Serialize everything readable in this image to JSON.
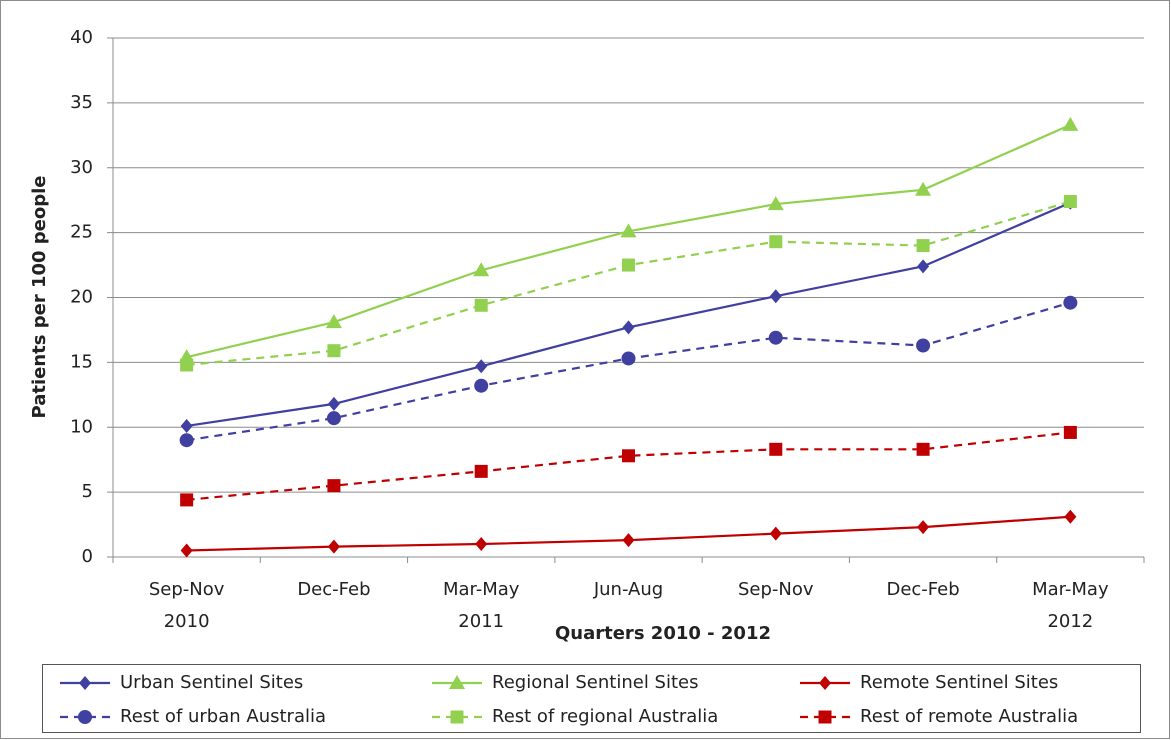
{
  "chart_data": {
    "type": "line",
    "x_label": "Quarters 2010 - 2012",
    "y_label": "Patients per 100 people",
    "categories": [
      "Sep-Nov\n2010",
      "Dec-Feb",
      "Mar-May\n2011",
      "Jun-Aug",
      "Sep-Nov",
      "Dec-Feb",
      "Mar-May\n2012"
    ],
    "ylim": [
      0,
      40
    ],
    "yticks": [
      0,
      5,
      10,
      15,
      20,
      25,
      30,
      35,
      40
    ],
    "grid": true,
    "legend": "bottom",
    "series": [
      {
        "name": "Urban Sentinel Sites",
        "color": "#4040a0",
        "marker": "diamond",
        "dash": false,
        "values": [
          10.1,
          11.8,
          14.7,
          17.7,
          20.1,
          22.4,
          27.3
        ]
      },
      {
        "name": "Regional Sentinel Sites",
        "color": "#92d050",
        "marker": "triangle",
        "dash": false,
        "values": [
          15.4,
          18.1,
          22.1,
          25.1,
          27.2,
          28.3,
          33.3
        ]
      },
      {
        "name": "Remote Sentinel Sites",
        "color": "#c00000",
        "marker": "diamond",
        "dash": false,
        "values": [
          0.5,
          0.8,
          1.0,
          1.3,
          1.8,
          2.3,
          3.1
        ]
      },
      {
        "name": "Rest of urban Australia",
        "color": "#4040a0",
        "marker": "circle",
        "dash": true,
        "values": [
          9.0,
          10.7,
          13.2,
          15.3,
          16.9,
          16.3,
          19.6
        ]
      },
      {
        "name": "Rest of regional Australia",
        "color": "#92d050",
        "marker": "square",
        "dash": true,
        "values": [
          14.8,
          15.9,
          19.4,
          22.5,
          24.3,
          24.0,
          27.4
        ]
      },
      {
        "name": "Rest of remote Australia",
        "color": "#c00000",
        "marker": "square",
        "dash": true,
        "values": [
          4.4,
          5.5,
          6.6,
          7.8,
          8.3,
          8.3,
          9.6
        ]
      }
    ]
  }
}
